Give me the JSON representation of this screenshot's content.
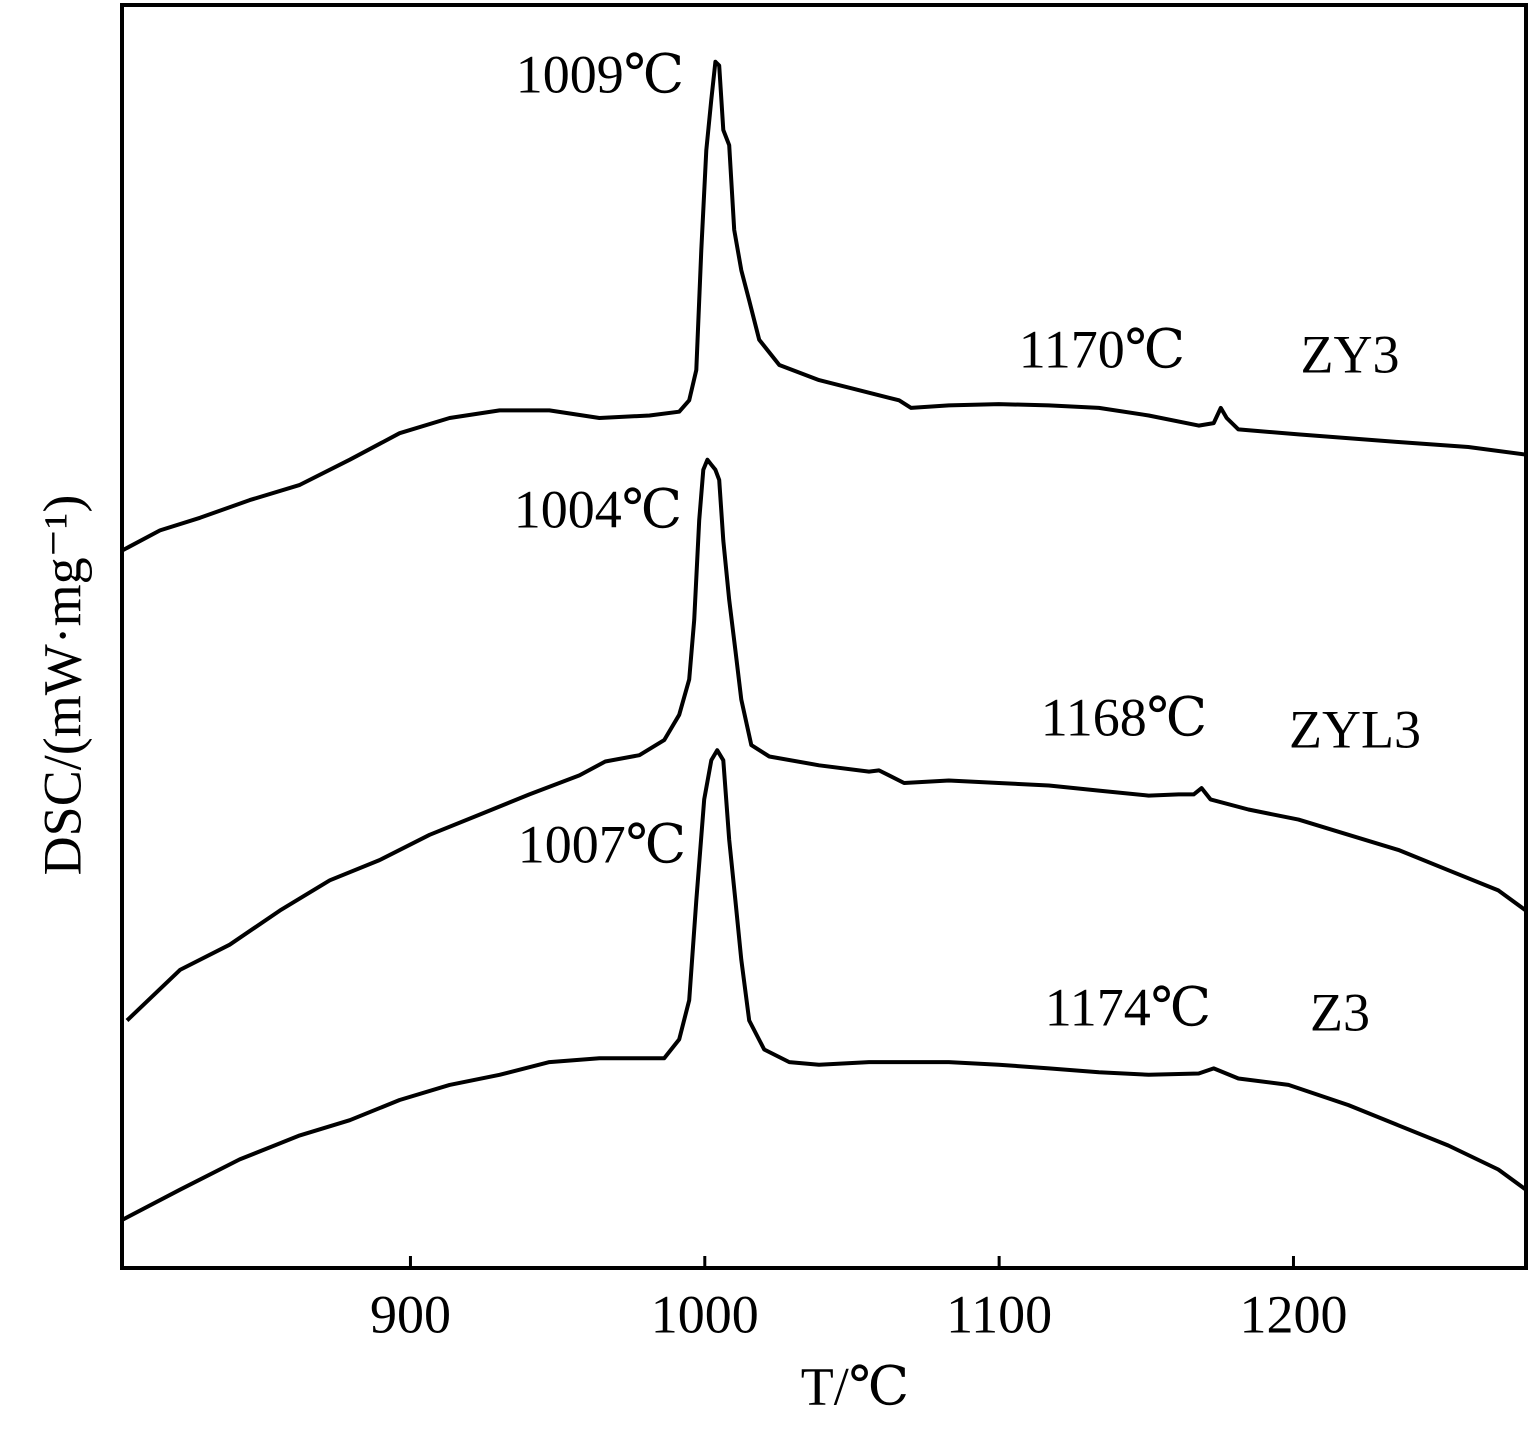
{
  "chart_data": {
    "type": "line",
    "x_label": "T/℃",
    "y_label": "DSC/(mW·mg⁻¹)",
    "xlim": [
      802,
      1279
    ],
    "xticks": [
      900,
      1000,
      1100,
      1200
    ],
    "ylim": [
      0,
      100
    ],
    "annotations": [
      "1009℃",
      "1170℃",
      "1004℃",
      "1168℃",
      "1007℃",
      "1174℃"
    ],
    "series": [
      {
        "name": "ZY3",
        "color": "#000000",
        "x": [
          802,
          814.9,
          828.5,
          845.4,
          862.4,
          879.4,
          896.3,
          913.3,
          930.3,
          947.2,
          964.2,
          981.2,
          991.3,
          994.7,
          997.1,
          998.8,
          1000.5,
          1002.2,
          1003.6,
          1004.9,
          1006.3,
          1008.3,
          1010.0,
          1012.4,
          1015.1,
          1018.5,
          1025.3,
          1038.8,
          1052.4,
          1066.0,
          1070.1,
          1082.9,
          1099.9,
          1116.9,
          1133.9,
          1150.8,
          1167.8,
          1172.9,
          1175.3,
          1177.3,
          1181.3,
          1201.7,
          1235.6,
          1259.4,
          1279
        ],
        "values": [
          56.8,
          58.4,
          59.4,
          60.8,
          62.0,
          64.0,
          66.1,
          67.3,
          67.9,
          67.9,
          67.3,
          67.5,
          67.8,
          68.7,
          71.1,
          80.6,
          88.5,
          92.5,
          95.5,
          95.2,
          90.1,
          88.9,
          82.2,
          79.0,
          76.6,
          73.5,
          71.5,
          70.3,
          69.5,
          68.7,
          68.1,
          68.3,
          68.4,
          68.3,
          68.1,
          67.5,
          66.7,
          66.9,
          68.1,
          67.3,
          66.4,
          66.0,
          65.4,
          65.0,
          64.4
        ]
      },
      {
        "name": "ZYL3",
        "color": "#000000",
        "x": [
          803.7,
          821.7,
          838.6,
          855.6,
          872.6,
          889.5,
          906.5,
          923.5,
          940.4,
          957.4,
          966.2,
          977.8,
          986.2,
          991.3,
          994.7,
          996.4,
          998.1,
          999.5,
          1000.9,
          1002.2,
          1003.6,
          1004.9,
          1006.3,
          1008.3,
          1010.4,
          1012.4,
          1015.8,
          1021.9,
          1038.8,
          1055.8,
          1059.2,
          1067.7,
          1082.9,
          1099.9,
          1116.9,
          1133.9,
          1150.8,
          1161.0,
          1166.1,
          1168.8,
          1171.8,
          1184.7,
          1201.7,
          1218.7,
          1235.6,
          1252.6,
          1269.6,
          1279
        ],
        "values": [
          19.6,
          23.6,
          25.6,
          28.3,
          30.7,
          32.3,
          34.3,
          35.9,
          37.5,
          39.0,
          40.1,
          40.6,
          41.8,
          43.8,
          46.6,
          51.3,
          59.2,
          63.2,
          64.0,
          63.6,
          63.2,
          62.4,
          57.6,
          52.9,
          48.9,
          45.0,
          41.4,
          40.5,
          39.8,
          39.3,
          39.4,
          38.4,
          38.6,
          38.4,
          38.2,
          37.8,
          37.4,
          37.5,
          37.5,
          38.0,
          37.1,
          36.3,
          35.5,
          34.3,
          33.1,
          31.5,
          29.9,
          28.3
        ]
      },
      {
        "name": "Z3",
        "color": "#000000",
        "x": [
          802,
          821.7,
          842.0,
          862.4,
          879.4,
          896.3,
          913.3,
          930.3,
          947.2,
          964.2,
          986.2,
          991.3,
          994.7,
          997.1,
          999.8,
          1002.2,
          1004.2,
          1006.3,
          1008.3,
          1010.4,
          1012.4,
          1015.1,
          1020.2,
          1028.7,
          1038.8,
          1055.8,
          1082.9,
          1099.9,
          1116.9,
          1133.9,
          1150.8,
          1167.8,
          1172.9,
          1181.3,
          1198.3,
          1218.7,
          1235.6,
          1252.6,
          1269.6,
          1279
        ],
        "values": [
          3.8,
          6.2,
          8.6,
          10.5,
          11.7,
          13.3,
          14.5,
          15.3,
          16.3,
          16.6,
          16.6,
          18.1,
          21.2,
          29.1,
          37.1,
          40.2,
          41.0,
          40.2,
          33.9,
          29.1,
          24.4,
          19.6,
          17.3,
          16.3,
          16.1,
          16.3,
          16.3,
          16.1,
          15.8,
          15.5,
          15.3,
          15.4,
          15.8,
          15.0,
          14.5,
          12.9,
          11.3,
          9.7,
          7.8,
          6.2
        ]
      }
    ]
  }
}
